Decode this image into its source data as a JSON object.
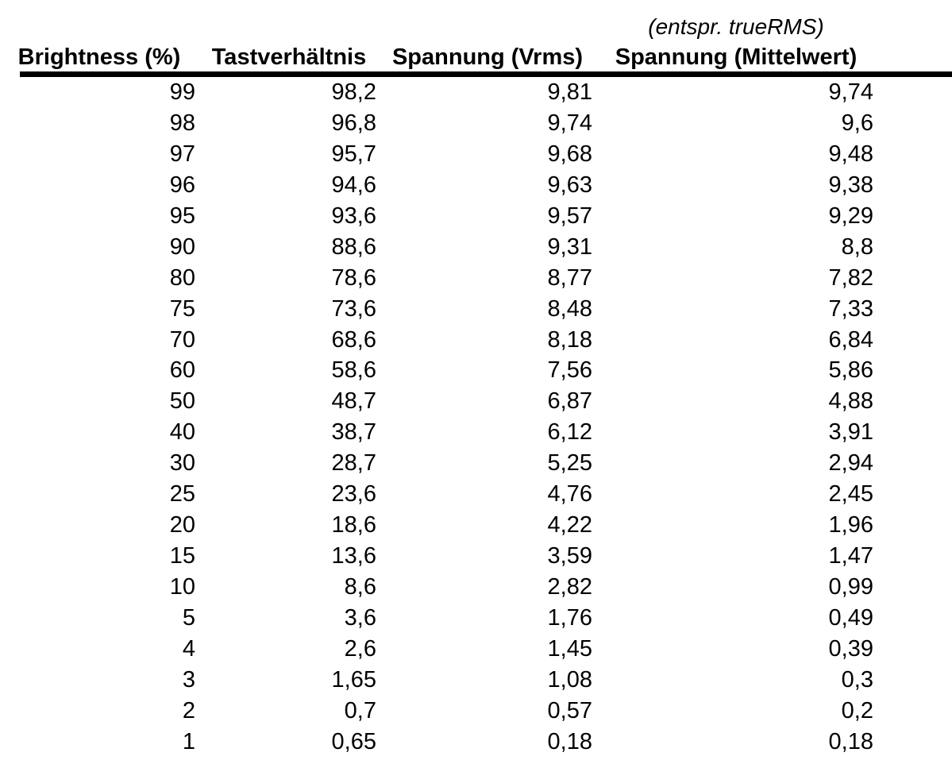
{
  "chart_data": {
    "type": "table",
    "note": "(entspr. trueRMS)",
    "columns": [
      "Brightness (%)",
      "Tastverhältnis",
      "Spannung (Vrms)",
      "Spannung (Mittelwert)"
    ],
    "rows": [
      [
        "99",
        "98,2",
        "9,81",
        "9,74"
      ],
      [
        "98",
        "96,8",
        "9,74",
        "9,6"
      ],
      [
        "97",
        "95,7",
        "9,68",
        "9,48"
      ],
      [
        "96",
        "94,6",
        "9,63",
        "9,38"
      ],
      [
        "95",
        "93,6",
        "9,57",
        "9,29"
      ],
      [
        "90",
        "88,6",
        "9,31",
        "8,8"
      ],
      [
        "80",
        "78,6",
        "8,77",
        "7,82"
      ],
      [
        "75",
        "73,6",
        "8,48",
        "7,33"
      ],
      [
        "70",
        "68,6",
        "8,18",
        "6,84"
      ],
      [
        "60",
        "58,6",
        "7,56",
        "5,86"
      ],
      [
        "50",
        "48,7",
        "6,87",
        "4,88"
      ],
      [
        "40",
        "38,7",
        "6,12",
        "3,91"
      ],
      [
        "30",
        "28,7",
        "5,25",
        "2,94"
      ],
      [
        "25",
        "23,6",
        "4,76",
        "2,45"
      ],
      [
        "20",
        "18,6",
        "4,22",
        "1,96"
      ],
      [
        "15",
        "13,6",
        "3,59",
        "1,47"
      ],
      [
        "10",
        "8,6",
        "2,82",
        "0,99"
      ],
      [
        "5",
        "3,6",
        "1,76",
        "0,49"
      ],
      [
        "4",
        "2,6",
        "1,45",
        "0,39"
      ],
      [
        "3",
        "1,65",
        "1,08",
        "0,3"
      ],
      [
        "2",
        "0,7",
        "0,57",
        "0,2"
      ],
      [
        "1",
        "0,65",
        "0,18",
        "0,18"
      ]
    ],
    "layout": {
      "decimal_separator": ",",
      "number_alignment": "right",
      "header_divider_color": "#000000",
      "background": "#ffffff",
      "text_color": "#000000"
    }
  }
}
